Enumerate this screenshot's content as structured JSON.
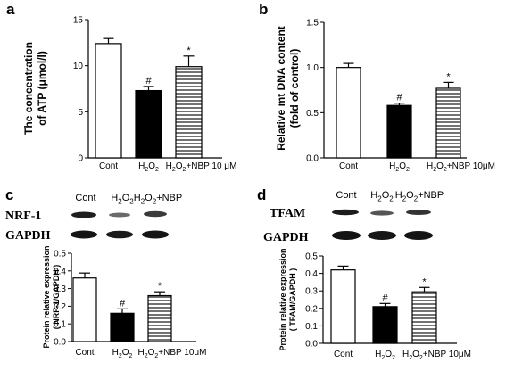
{
  "chart_data": [
    {
      "panel": "a",
      "type": "bar",
      "ylabel_lines": [
        "The concentration",
        "of ATP (μmol/l)"
      ],
      "ylim": [
        0,
        15
      ],
      "yticks": [
        0,
        5,
        10,
        15
      ],
      "ytick_labels": [
        "0",
        "5",
        "10",
        "15"
      ],
      "categories": [
        "Cont",
        "H2O2",
        "H2O2+NBP 10 μM"
      ],
      "values": [
        12.4,
        7.3,
        9.9
      ],
      "errors": [
        0.55,
        0.45,
        1.15
      ],
      "fills": [
        "white",
        "black",
        "stripes"
      ],
      "markers": [
        "",
        "#",
        "*"
      ]
    },
    {
      "panel": "b",
      "type": "bar",
      "ylabel_lines": [
        "Relative mt DNA content",
        "(fold of control)"
      ],
      "ylim": [
        0,
        1.5
      ],
      "yticks": [
        0,
        0.5,
        1.0,
        1.5
      ],
      "ytick_labels": [
        "0.0",
        "0.5",
        "1.0",
        "1.5"
      ],
      "categories": [
        "Cont",
        "H2O2",
        "H2O2+NBP 10μM"
      ],
      "values": [
        1.0,
        0.58,
        0.77
      ],
      "errors": [
        0.045,
        0.025,
        0.065
      ],
      "fills": [
        "white",
        "black",
        "stripes"
      ],
      "markers": [
        "",
        "#",
        "*"
      ]
    },
    {
      "panel": "c",
      "type": "bar",
      "blot_lanes": [
        "Cont",
        "H2O2",
        "H2O2+NBP"
      ],
      "blot_rows": [
        "NRF-1",
        "GAPDH"
      ],
      "ylabel_lines": [
        "Protein relative expression",
        "( NRF-1/GAPDH )"
      ],
      "ylim": [
        0,
        0.5
      ],
      "yticks": [
        0,
        0.1,
        0.2,
        0.3,
        0.4,
        0.5
      ],
      "ytick_labels": [
        "0.0",
        "0.1",
        "0.2",
        "0.3",
        "0.4",
        "0.5"
      ],
      "categories": [
        "Cont",
        "H2O2",
        "H2O2+NBP 10μM"
      ],
      "values": [
        0.36,
        0.16,
        0.26
      ],
      "errors": [
        0.028,
        0.025,
        0.022
      ],
      "fills": [
        "white",
        "black",
        "stripes"
      ],
      "markers": [
        "",
        "#",
        "*"
      ]
    },
    {
      "panel": "d",
      "type": "bar",
      "blot_lanes": [
        "Cont",
        "H2O2",
        "H2O2+NBP"
      ],
      "blot_rows": [
        "TFAM",
        "GAPDH"
      ],
      "ylabel_lines": [
        "Protein relative expression",
        "( TFAM/GAPDH )"
      ],
      "ylim": [
        0,
        0.5
      ],
      "yticks": [
        0,
        0.1,
        0.2,
        0.3,
        0.4,
        0.5
      ],
      "ytick_labels": [
        "0.0",
        "0.1",
        "0.2",
        "0.3",
        "0.4",
        "0.5"
      ],
      "categories": [
        "Cont",
        "H2O2",
        "H2O2+NBP 10μM"
      ],
      "values": [
        0.42,
        0.21,
        0.295
      ],
      "errors": [
        0.022,
        0.018,
        0.025
      ],
      "fills": [
        "white",
        "black",
        "stripes"
      ],
      "markers": [
        "",
        "#",
        "*"
      ]
    }
  ]
}
